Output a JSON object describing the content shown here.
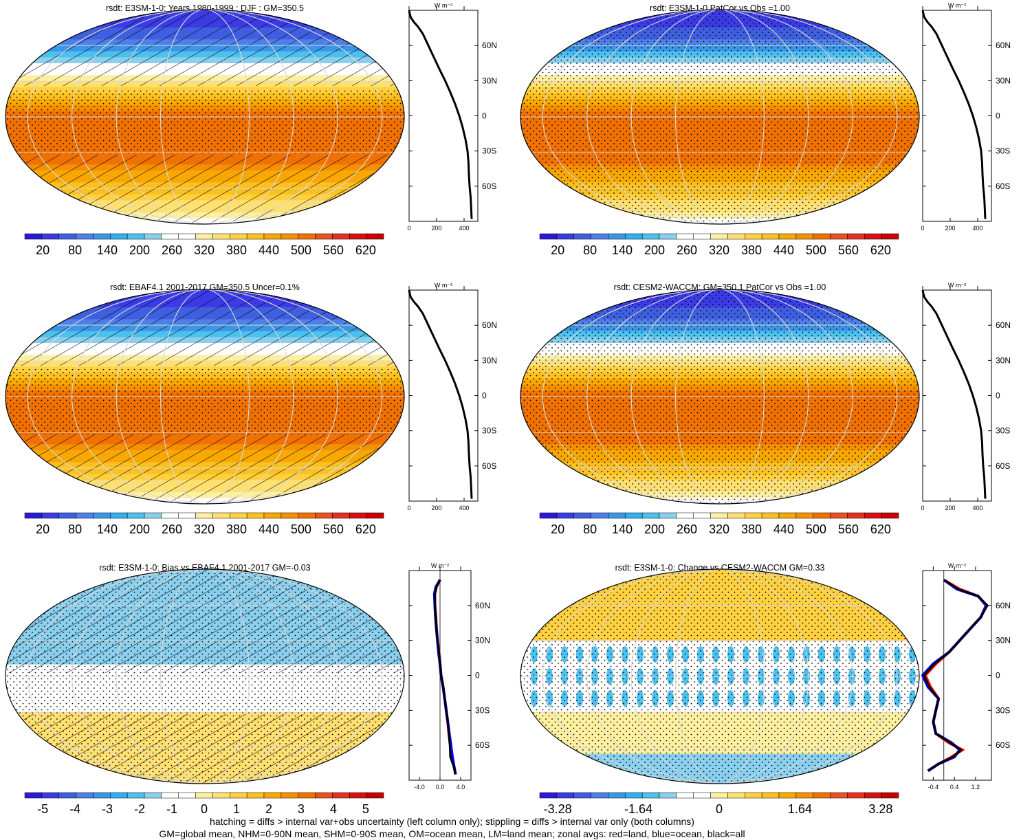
{
  "colors": {
    "palette": [
      "#2a1ad8",
      "#3b3be6",
      "#3f5fe0",
      "#4d80e8",
      "#3a96e8",
      "#2fb0f0",
      "#4cc0ee",
      "#8ad0ee",
      "#ffffff",
      "#ffffff",
      "#fff0a0",
      "#ffe070",
      "#ffd040",
      "#fcc020",
      "#f8a800",
      "#f59000",
      "#f07000",
      "#ea5020",
      "#e53020",
      "#d81010",
      "#c80000"
    ],
    "land_marker": "#ff0000",
    "ocean_marker": "#0000ff",
    "all_line": "#000000"
  },
  "panels": [
    {
      "id": "e3sm-clim",
      "title": "rsdt: E3SM-1-0: Years 1980-1999 : DJF : GM=350.5",
      "map_pattern": "clim",
      "hatching": "lat_variable",
      "stippling": "tropics",
      "cb_labels": [
        "20",
        "80",
        "140",
        "200",
        "260",
        "320",
        "380",
        "440",
        "500",
        "560",
        "620"
      ]
    },
    {
      "id": "e3sm-patcor",
      "title": "rsdt: E3SM-1-0 PatCor vs Obs =1.00",
      "map_pattern": "clim",
      "hatching": "none",
      "stippling": "full",
      "cb_labels": [
        "20",
        "80",
        "140",
        "200",
        "260",
        "320",
        "380",
        "440",
        "500",
        "560",
        "620"
      ]
    },
    {
      "id": "ebaf-clim",
      "title": "rsdt: EBAF4.1 2001-2017 GM=350.5 Uncer=0.1%",
      "map_pattern": "clim",
      "hatching": "lat_variable",
      "stippling": "tropics",
      "cb_labels": [
        "20",
        "80",
        "140",
        "200",
        "260",
        "320",
        "380",
        "440",
        "500",
        "560",
        "620"
      ]
    },
    {
      "id": "cesm-clim",
      "title": "rsdt: CESM2-WACCM: GM=350.1 PatCor vs Obs =1.00",
      "map_pattern": "clim",
      "hatching": "none",
      "stippling": "full",
      "cb_labels": [
        "20",
        "80",
        "140",
        "200",
        "260",
        "320",
        "380",
        "440",
        "500",
        "560",
        "620"
      ]
    },
    {
      "id": "bias",
      "title": "rsdt: E3SM-1-0: Bias vs EBAF4.1 2001-2017 GM=-0.03",
      "map_pattern": "bias",
      "hatching": "full",
      "stippling": "full",
      "cb_labels": [
        "-5",
        "-4",
        "-3",
        "-2",
        "-1",
        "0",
        "1",
        "2",
        "3",
        "4",
        "5"
      ]
    },
    {
      "id": "change",
      "title": "rsdt: E3SM-1-0: Change vs CESM2-WACCM GM=0.33",
      "map_pattern": "change",
      "hatching": "none",
      "stippling": "full",
      "cb_labels": [
        "-3.28",
        "-1.64",
        "0",
        "1.64",
        "3.28"
      ]
    }
  ],
  "chart_data": [
    {
      "type": "line",
      "panel": "e3sm-clim",
      "ylabel": "W m⁻²",
      "xticks": [
        "0",
        "200",
        "400"
      ],
      "yticks": [
        "60N",
        "30N",
        "0",
        "30S",
        "60S"
      ],
      "xlim": [
        0,
        500
      ],
      "ylim": [
        -90,
        90
      ],
      "series": [
        {
          "x": [
            455,
            452,
            448,
            440,
            435,
            432,
            425,
            410,
            390,
            365,
            335,
            300,
            262,
            220,
            180,
            140,
            100,
            65,
            35,
            12,
            3,
            0
          ],
          "y": [
            -88,
            -80,
            -70,
            -60,
            -50,
            -40,
            -30,
            -20,
            -10,
            0,
            10,
            20,
            30,
            40,
            50,
            60,
            70,
            76,
            80,
            84,
            88,
            90
          ]
        }
      ]
    },
    {
      "type": "line",
      "panel": "e3sm-patcor",
      "ylabel": "W m⁻²",
      "xticks": [
        "0",
        "200",
        "400"
      ],
      "yticks": [
        "60N",
        "30N",
        "0",
        "30S",
        "60S"
      ],
      "xlim": [
        0,
        500
      ],
      "ylim": [
        -90,
        90
      ],
      "series": [
        {
          "x": [
            455,
            452,
            448,
            440,
            435,
            432,
            425,
            410,
            390,
            365,
            335,
            300,
            262,
            220,
            180,
            140,
            100,
            65,
            35,
            12,
            3,
            0
          ],
          "y": [
            -88,
            -80,
            -70,
            -60,
            -50,
            -40,
            -30,
            -20,
            -10,
            0,
            10,
            20,
            30,
            40,
            50,
            60,
            70,
            76,
            80,
            84,
            88,
            90
          ]
        }
      ]
    },
    {
      "type": "line",
      "panel": "ebaf-clim",
      "ylabel": "W m⁻²",
      "xticks": [
        "0",
        "200",
        "400"
      ],
      "yticks": [
        "60N",
        "30N",
        "0",
        "30S",
        "60S"
      ],
      "xlim": [
        0,
        500
      ],
      "ylim": [
        -90,
        90
      ],
      "series": [
        {
          "x": [
            455,
            452,
            448,
            440,
            435,
            432,
            425,
            410,
            390,
            365,
            335,
            300,
            262,
            220,
            180,
            140,
            100,
            65,
            35,
            12,
            3,
            0
          ],
          "y": [
            -88,
            -80,
            -70,
            -60,
            -50,
            -40,
            -30,
            -20,
            -10,
            0,
            10,
            20,
            30,
            40,
            50,
            60,
            70,
            76,
            80,
            84,
            88,
            90
          ]
        }
      ]
    },
    {
      "type": "line",
      "panel": "cesm-clim",
      "ylabel": "W m⁻²",
      "xticks": [
        "0",
        "200",
        "400"
      ],
      "yticks": [
        "60N",
        "30N",
        "0",
        "30S",
        "60S"
      ],
      "xlim": [
        0,
        500
      ],
      "ylim": [
        -90,
        90
      ],
      "series": [
        {
          "x": [
            455,
            452,
            448,
            440,
            435,
            432,
            425,
            410,
            390,
            365,
            335,
            300,
            262,
            220,
            180,
            140,
            100,
            65,
            35,
            12,
            3,
            0
          ],
          "y": [
            -88,
            -80,
            -70,
            -60,
            -50,
            -40,
            -30,
            -20,
            -10,
            0,
            10,
            20,
            30,
            40,
            50,
            60,
            70,
            76,
            80,
            84,
            88,
            90
          ]
        }
      ]
    },
    {
      "type": "line",
      "panel": "bias",
      "ylabel": "W m⁻²",
      "xticks": [
        "-4.0",
        "0.0",
        "4.0"
      ],
      "yticks": [
        "60N",
        "30N",
        "0",
        "30S",
        "60S"
      ],
      "xlim": [
        -6,
        6
      ],
      "ylim": [
        -90,
        90
      ],
      "series": [
        {
          "x": [
            3.0,
            2.8,
            2.2,
            2.0,
            1.7,
            1.5,
            1.2,
            0.9,
            0.6,
            0.2,
            0.0,
            -0.2,
            -0.5,
            -0.7,
            -0.8,
            -1.0,
            -1.0,
            -0.7,
            0.0
          ],
          "y": [
            -85,
            -80,
            -70,
            -60,
            -50,
            -40,
            -30,
            -20,
            -10,
            0,
            10,
            20,
            30,
            40,
            50,
            60,
            70,
            76,
            82
          ]
        },
        {
          "x": [
            3.0,
            2.8,
            2.4,
            2.1,
            1.8,
            1.5,
            1.2,
            0.9,
            0.6,
            0.2,
            0.0,
            -0.3,
            -0.5,
            -0.7,
            -0.9,
            -1.0,
            -1.1,
            -0.8,
            0.0
          ],
          "y": [
            -85,
            -80,
            -70,
            -60,
            -50,
            -40,
            -30,
            -20,
            -10,
            0,
            10,
            20,
            30,
            40,
            50,
            60,
            70,
            76,
            82
          ]
        },
        {
          "x": [
            3.0,
            2.8,
            2.0,
            1.9,
            1.7,
            1.5,
            1.2,
            0.9,
            0.6,
            0.2,
            0.0,
            -0.2,
            -0.5,
            -0.7,
            -0.8,
            -1.0,
            -1.0,
            -0.7,
            0.0
          ],
          "y": [
            -85,
            -80,
            -70,
            -60,
            -50,
            -40,
            -30,
            -20,
            -10,
            0,
            10,
            20,
            30,
            40,
            50,
            60,
            70,
            76,
            82
          ]
        }
      ]
    },
    {
      "type": "line",
      "panel": "change",
      "ylabel": "W m⁻²",
      "xticks": [
        "-0.4",
        "0.4",
        "1.2"
      ],
      "yticks": [
        "60N",
        "30N",
        "0",
        "30S",
        "60S"
      ],
      "xlim": [
        -0.8,
        1.8
      ],
      "ylim": [
        -90,
        90
      ],
      "series": [
        {
          "x": [
            -0.6,
            -0.2,
            0.3,
            0.7,
            0.2,
            -0.3,
            -0.4,
            -0.3,
            -0.2,
            -0.5,
            -0.7,
            -0.3,
            0.2,
            0.6,
            1.0,
            1.4,
            1.6,
            1.3,
            0.6,
            0.0
          ],
          "y": [
            -82,
            -76,
            -70,
            -64,
            -58,
            -50,
            -40,
            -30,
            -20,
            -10,
            0,
            10,
            20,
            30,
            40,
            50,
            60,
            68,
            74,
            82
          ]
        },
        {
          "x": [
            -0.6,
            -0.2,
            0.4,
            0.6,
            0.3,
            -0.3,
            -0.4,
            -0.3,
            -0.2,
            -0.6,
            -0.8,
            -0.4,
            0.2,
            0.6,
            1.0,
            1.4,
            1.6,
            1.3,
            0.5,
            0.0
          ],
          "y": [
            -82,
            -76,
            -70,
            -64,
            -58,
            -50,
            -40,
            -30,
            -20,
            -10,
            0,
            10,
            20,
            30,
            40,
            50,
            60,
            68,
            74,
            82
          ]
        },
        {
          "x": [
            -0.6,
            -0.2,
            0.35,
            0.65,
            0.25,
            -0.3,
            -0.4,
            -0.3,
            -0.2,
            -0.55,
            -0.75,
            -0.35,
            0.2,
            0.6,
            1.0,
            1.4,
            1.65,
            1.3,
            0.55,
            0.0
          ],
          "y": [
            -82,
            -76,
            -70,
            -64,
            -58,
            -50,
            -40,
            -30,
            -20,
            -10,
            0,
            10,
            20,
            30,
            40,
            50,
            60,
            68,
            74,
            82
          ]
        }
      ]
    }
  ],
  "footnotes": [
    "hatching = diffs > internal var+obs uncertainty (left column only); stippling = diffs > internal var only (both columns)",
    "GM=global mean, NHM=0-90N mean, SHM=0-90S mean, OM=ocean mean, LM=land mean; zonal avgs: red=land, blue=ocean, black=all"
  ]
}
